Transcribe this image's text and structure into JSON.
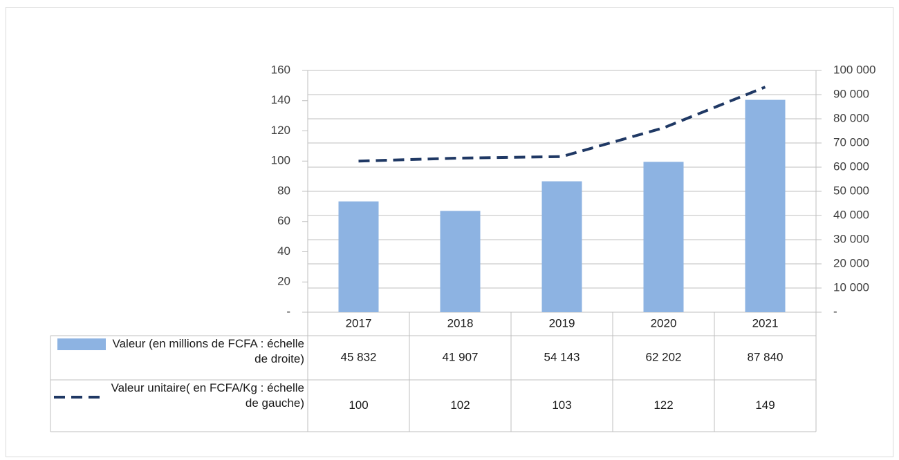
{
  "chart_data": {
    "type": "bar",
    "categories": [
      "2017",
      "2018",
      "2019",
      "2020",
      "2021"
    ],
    "series": [
      {
        "name": "Valeur (en millions de FCFA : échelle de droite)",
        "type": "bar",
        "axis": "y2",
        "color": "#8db3e2",
        "values": [
          45832,
          41907,
          54143,
          62202,
          87840
        ],
        "value_labels": [
          "45 832",
          "41 907",
          "54 143",
          "62 202",
          "87 840"
        ]
      },
      {
        "name": "Valeur unitaire( en FCFA/Kg : échelle de gauche)",
        "type": "line",
        "axis": "y",
        "color": "#1f3864",
        "values": [
          100,
          102,
          103,
          122,
          149
        ]
      }
    ],
    "ylim": [
      0,
      160
    ],
    "yticks": [
      {
        "value": 0,
        "label": "-"
      },
      20,
      40,
      60,
      80,
      100,
      120,
      140,
      160
    ],
    "y2lim": [
      0,
      100000
    ],
    "y2ticks": [
      {
        "value": 0,
        "label": "-"
      },
      {
        "value": 10000,
        "label": "10 000"
      },
      {
        "value": 20000,
        "label": "20 000"
      },
      {
        "value": 30000,
        "label": "30 000"
      },
      {
        "value": 40000,
        "label": "40 000"
      },
      {
        "value": 50000,
        "label": "50 000"
      },
      {
        "value": 60000,
        "label": "60 000"
      },
      {
        "value": 70000,
        "label": "70 000"
      },
      {
        "value": 80000,
        "label": "80 000"
      },
      {
        "value": 90000,
        "label": "90 000"
      },
      {
        "value": 100000,
        "label": "100 000"
      }
    ],
    "grid": true
  }
}
